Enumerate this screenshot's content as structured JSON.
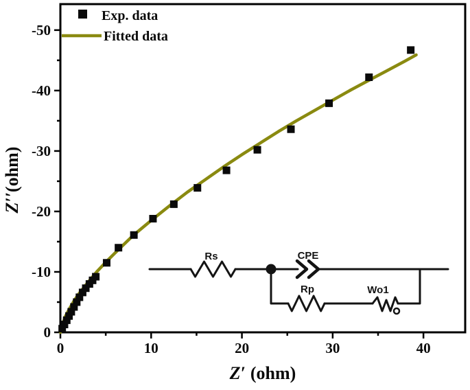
{
  "colors": {
    "background": "#ffffff",
    "axis": "#000000",
    "exp_marker": "#0a0a0a",
    "fit_line": "#8a8a10",
    "circuit": "#141414"
  },
  "chart_data": {
    "type": "scatter",
    "title": "",
    "xlabel": "Z′ (ohm)",
    "ylabel": "Z′′(ohm)",
    "xlim": [
      0,
      44.6
    ],
    "ylim": [
      0,
      -54.3
    ],
    "x_ticks": [
      0,
      10,
      20,
      30,
      40
    ],
    "x_minor_ticks": [
      5,
      15,
      25,
      35
    ],
    "y_ticks": [
      0,
      -10,
      -20,
      -30,
      -40,
      -50
    ],
    "y_minor_ticks": [
      -5,
      -15,
      -25,
      -35,
      -45
    ],
    "grid": false,
    "legend_position": "top-left",
    "series": [
      {
        "name": "Exp. data",
        "type": "scatter",
        "marker": "square",
        "color": "#0a0a0a",
        "points": [
          [
            0.2,
            -0.6
          ],
          [
            0.45,
            -1.3
          ],
          [
            0.7,
            -2.0
          ],
          [
            0.95,
            -2.7
          ],
          [
            1.2,
            -3.4
          ],
          [
            1.5,
            -4.2
          ],
          [
            1.8,
            -5.0
          ],
          [
            2.1,
            -5.8
          ],
          [
            2.45,
            -6.6
          ],
          [
            2.8,
            -7.3
          ],
          [
            3.2,
            -8.0
          ],
          [
            3.55,
            -8.6
          ],
          [
            3.9,
            -9.2
          ],
          [
            5.1,
            -11.5
          ],
          [
            6.4,
            -14.0
          ],
          [
            8.1,
            -16.1
          ],
          [
            10.2,
            -18.8
          ],
          [
            12.5,
            -21.2
          ],
          [
            15.1,
            -23.9
          ],
          [
            18.3,
            -26.8
          ],
          [
            21.7,
            -30.2
          ],
          [
            25.4,
            -33.6
          ],
          [
            29.6,
            -37.9
          ],
          [
            34.0,
            -42.2
          ],
          [
            38.6,
            -46.7
          ]
        ]
      },
      {
        "name": "Fitted data",
        "type": "line",
        "color": "#8a8a10",
        "points": [
          [
            0,
            0
          ],
          [
            0.5,
            -2.5
          ],
          [
            1,
            -3.9
          ],
          [
            1.5,
            -5.2
          ],
          [
            2,
            -6.3
          ],
          [
            3,
            -8.2
          ],
          [
            4,
            -10.0
          ],
          [
            5,
            -11.6
          ],
          [
            6,
            -13.1
          ],
          [
            8,
            -16.0
          ],
          [
            10,
            -18.5
          ],
          [
            12,
            -20.9
          ],
          [
            14,
            -23.2
          ],
          [
            16,
            -25.3
          ],
          [
            18,
            -27.4
          ],
          [
            20,
            -29.4
          ],
          [
            22,
            -31.3
          ],
          [
            24,
            -33.2
          ],
          [
            26,
            -35.0
          ],
          [
            28,
            -36.7
          ],
          [
            30,
            -38.4
          ],
          [
            32,
            -40.1
          ],
          [
            34,
            -41.7
          ],
          [
            36,
            -43.3
          ],
          [
            38,
            -44.9
          ],
          [
            39.2,
            -45.9
          ]
        ]
      }
    ],
    "annotations": {
      "circuit_inset": {
        "labels": {
          "rs": "Rs",
          "cpe": "CPE",
          "rp": "Rp",
          "wo1": "Wo1"
        }
      }
    }
  }
}
